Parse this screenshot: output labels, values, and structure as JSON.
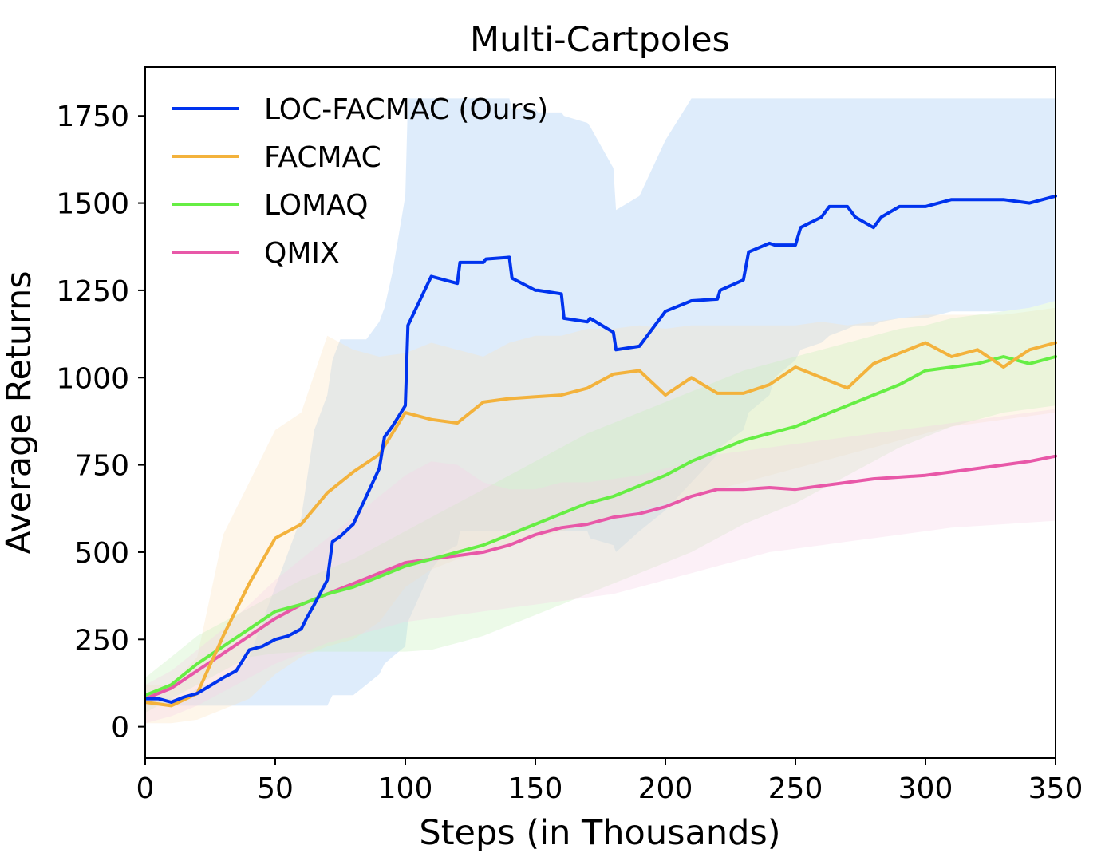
{
  "chart_data": {
    "type": "line",
    "title": "Multi-Cartpoles",
    "xlabel": "Steps (in Thousands)",
    "ylabel": "Average Returns",
    "xlim": [
      0,
      350
    ],
    "ylim": [
      -90,
      1890
    ],
    "xticks": [
      0,
      50,
      100,
      150,
      200,
      250,
      300,
      350
    ],
    "yticks": [
      0,
      250,
      500,
      750,
      1000,
      1250,
      1500,
      1750
    ],
    "grid": false,
    "legend_position": "top-left",
    "series": [
      {
        "name": "LOC-FACMAC (Ours)",
        "color": "#0033ee",
        "band_color": "#a9cdf5",
        "x": [
          0,
          5,
          10,
          15,
          20,
          30,
          35,
          40,
          45,
          50,
          55,
          60,
          62,
          65,
          70,
          72,
          75,
          80,
          85,
          90,
          92,
          95,
          100,
          101,
          110,
          115,
          120,
          121,
          130,
          131,
          140,
          141,
          150,
          151,
          160,
          161,
          170,
          171,
          180,
          181,
          190,
          200,
          210,
          220,
          221,
          230,
          232,
          240,
          242,
          250,
          252,
          260,
          263,
          270,
          273,
          280,
          283,
          290,
          300,
          305,
          310,
          320,
          330,
          340,
          345,
          350
        ],
        "values": [
          80,
          80,
          70,
          85,
          95,
          140,
          160,
          220,
          230,
          250,
          260,
          280,
          310,
          350,
          420,
          530,
          545,
          580,
          660,
          740,
          830,
          860,
          920,
          1150,
          1290,
          1280,
          1270,
          1330,
          1330,
          1340,
          1345,
          1285,
          1250,
          1250,
          1240,
          1170,
          1160,
          1170,
          1130,
          1080,
          1090,
          1190,
          1220,
          1225,
          1250,
          1280,
          1360,
          1385,
          1380,
          1380,
          1430,
          1460,
          1490,
          1490,
          1460,
          1430,
          1460,
          1490,
          1490,
          1500,
          1510,
          1510,
          1510,
          1500,
          1510,
          1520
        ],
        "upper": [
          80,
          80,
          80,
          80,
          110,
          140,
          160,
          200,
          300,
          400,
          500,
          600,
          700,
          850,
          950,
          1050,
          1110,
          1110,
          1110,
          1160,
          1200,
          1300,
          1520,
          1800,
          1800,
          1800,
          1800,
          1800,
          1800,
          1800,
          1800,
          1770,
          1770,
          1760,
          1760,
          1750,
          1730,
          1720,
          1600,
          1480,
          1520,
          1680,
          1800,
          1800,
          1800,
          1800,
          1800,
          1800,
          1800,
          1800,
          1800,
          1800,
          1800,
          1800,
          1800,
          1800,
          1800,
          1800,
          1800,
          1800,
          1800,
          1800,
          1800,
          1800,
          1800,
          1800
        ],
        "lower": [
          60,
          60,
          60,
          60,
          60,
          60,
          60,
          60,
          60,
          60,
          60,
          60,
          60,
          60,
          60,
          90,
          90,
          90,
          120,
          150,
          180,
          200,
          230,
          300,
          450,
          500,
          520,
          560,
          560,
          560,
          560,
          560,
          560,
          560,
          560,
          560,
          560,
          540,
          520,
          500,
          560,
          620,
          700,
          780,
          800,
          850,
          900,
          950,
          1000,
          1050,
          1080,
          1100,
          1120,
          1140,
          1150,
          1150,
          1160,
          1170,
          1170,
          1180,
          1190,
          1190,
          1190,
          1200,
          1210,
          1220
        ]
      },
      {
        "name": "FACMAC",
        "color": "#f3b23c",
        "band_color": "#fbe3bd",
        "x": [
          0,
          10,
          20,
          30,
          40,
          50,
          60,
          70,
          80,
          90,
          100,
          110,
          120,
          130,
          140,
          150,
          160,
          170,
          180,
          190,
          200,
          210,
          220,
          230,
          240,
          250,
          260,
          270,
          280,
          290,
          300,
          310,
          320,
          330,
          340,
          350
        ],
        "values": [
          70,
          60,
          95,
          260,
          410,
          540,
          580,
          670,
          730,
          780,
          900,
          880,
          870,
          930,
          940,
          945,
          950,
          970,
          1010,
          1020,
          950,
          1000,
          955,
          955,
          980,
          1030,
          1000,
          970,
          1040,
          1070,
          1100,
          1060,
          1080,
          1030,
          1080,
          1100
        ],
        "upper": [
          120,
          120,
          200,
          550,
          700,
          850,
          900,
          1120,
          1080,
          1060,
          1070,
          1100,
          1080,
          1060,
          1100,
          1120,
          1120,
          1140,
          1140,
          1150,
          1140,
          1150,
          1150,
          1150,
          1150,
          1150,
          1160,
          1150,
          1160,
          1170,
          1180,
          1180,
          1180,
          1180,
          1190,
          1200
        ],
        "lower": [
          10,
          10,
          20,
          50,
          80,
          150,
          200,
          230,
          250,
          300,
          400,
          450,
          480,
          500,
          520,
          540,
          560,
          580,
          600,
          620,
          640,
          660,
          680,
          700,
          720,
          740,
          760,
          780,
          800,
          820,
          840,
          860,
          870,
          880,
          890,
          900
        ]
      },
      {
        "name": "LOMAQ",
        "color": "#66ee44",
        "band_color": "#c3f1b8",
        "x": [
          0,
          10,
          20,
          30,
          40,
          50,
          60,
          70,
          80,
          90,
          100,
          110,
          120,
          130,
          140,
          150,
          160,
          170,
          180,
          190,
          200,
          210,
          220,
          230,
          240,
          250,
          260,
          270,
          280,
          290,
          300,
          310,
          320,
          330,
          340,
          350
        ],
        "values": [
          90,
          120,
          180,
          230,
          280,
          330,
          350,
          380,
          400,
          430,
          460,
          480,
          500,
          520,
          550,
          580,
          610,
          640,
          660,
          690,
          720,
          760,
          790,
          820,
          840,
          860,
          890,
          920,
          950,
          980,
          1020,
          1030,
          1040,
          1060,
          1040,
          1060
        ],
        "upper": [
          140,
          200,
          260,
          300,
          340,
          380,
          420,
          450,
          480,
          520,
          560,
          600,
          640,
          680,
          720,
          760,
          800,
          840,
          870,
          900,
          930,
          960,
          990,
          1020,
          1040,
          1060,
          1080,
          1100,
          1120,
          1140,
          1150,
          1170,
          1180,
          1190,
          1200,
          1220
        ],
        "lower": [
          40,
          80,
          120,
          160,
          200,
          210,
          215,
          215,
          215,
          215,
          215,
          220,
          240,
          260,
          290,
          320,
          350,
          380,
          410,
          440,
          470,
          500,
          540,
          580,
          610,
          640,
          680,
          720,
          760,
          800,
          830,
          860,
          880,
          900,
          910,
          920
        ]
      },
      {
        "name": "QMIX",
        "color": "#e858a8",
        "band_color": "#f7cfe5",
        "x": [
          0,
          10,
          20,
          30,
          40,
          50,
          60,
          70,
          80,
          90,
          100,
          110,
          120,
          130,
          140,
          150,
          160,
          170,
          180,
          190,
          200,
          210,
          220,
          230,
          240,
          250,
          260,
          270,
          280,
          290,
          300,
          310,
          320,
          330,
          340,
          350
        ],
        "values": [
          80,
          110,
          160,
          210,
          260,
          310,
          350,
          380,
          410,
          440,
          470,
          480,
          490,
          500,
          520,
          550,
          570,
          580,
          600,
          610,
          630,
          660,
          680,
          680,
          685,
          680,
          690,
          700,
          710,
          715,
          720,
          730,
          740,
          750,
          760,
          775
        ],
        "upper": [
          120,
          160,
          220,
          280,
          350,
          420,
          480,
          540,
          600,
          660,
          720,
          760,
          750,
          700,
          680,
          680,
          700,
          700,
          710,
          720,
          740,
          760,
          780,
          790,
          800,
          810,
          820,
          830,
          840,
          850,
          860,
          870,
          880,
          890,
          900,
          910
        ],
        "lower": [
          10,
          30,
          60,
          100,
          140,
          180,
          210,
          240,
          260,
          280,
          300,
          310,
          320,
          330,
          340,
          350,
          360,
          370,
          380,
          400,
          420,
          440,
          460,
          480,
          500,
          510,
          520,
          530,
          540,
          550,
          560,
          570,
          575,
          580,
          585,
          590
        ]
      }
    ]
  }
}
